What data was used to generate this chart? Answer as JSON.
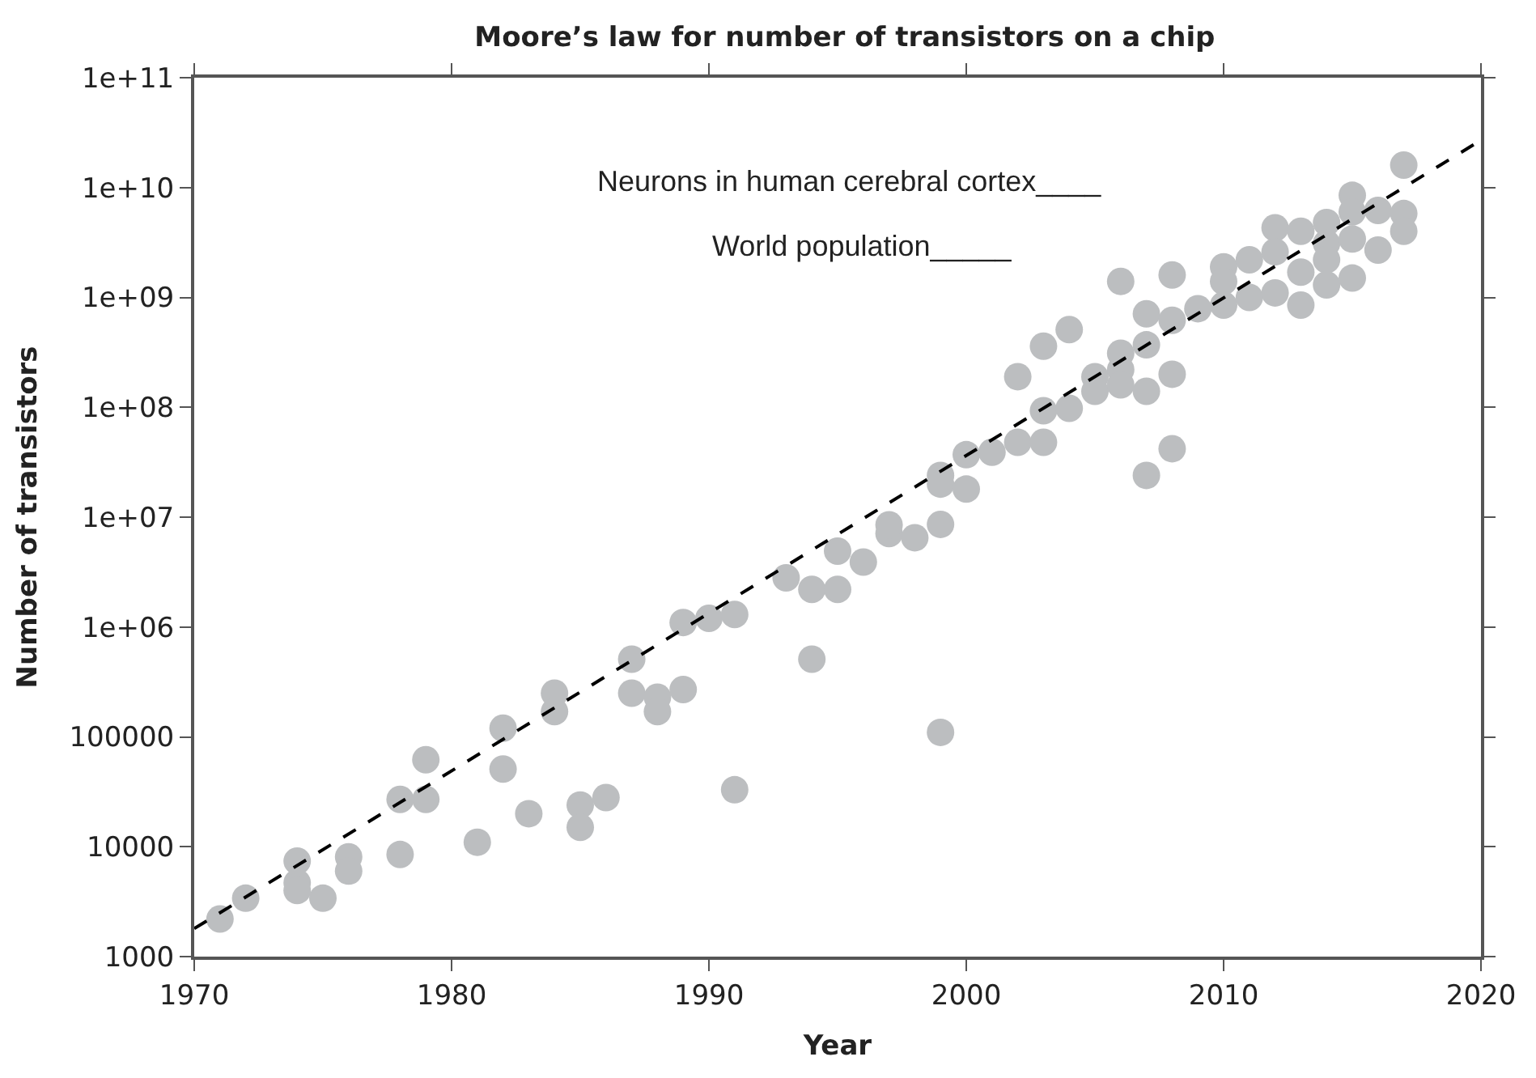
{
  "chart_data": {
    "type": "scatter",
    "title": "Moore’s law for number of transistors on a chip",
    "xlabel": "Year",
    "ylabel": "Number of transistors",
    "log": "y",
    "marker": "circle",
    "xlim": [
      1970,
      2020
    ],
    "xticks": [
      1970,
      1980,
      1990,
      2000,
      2010,
      2020
    ],
    "ylim": [
      1000,
      100000000000
    ],
    "yticks": [
      1000,
      10000,
      100000,
      {
        "value": 1000000,
        "label": "1e+06"
      },
      {
        "value": 10000000,
        "label": "1e+07"
      },
      {
        "value": 100000000,
        "label": "1e+08"
      },
      {
        "value": 1000000000,
        "label": "1e+09"
      },
      {
        "value": 10000000000,
        "label": "1e+10"
      },
      {
        "value": 100000000000,
        "label": "1e+11"
      }
    ],
    "annotations": [
      "Neurons in human cerebral cortex____",
      "World population_____"
    ],
    "series": [
      {
        "color": "#bcbec0",
        "x": [
          1971,
          1972,
          1974,
          1974,
          1974,
          1975,
          1976,
          1976,
          1978,
          1978,
          1979,
          1979,
          1981,
          1982,
          1982,
          1983,
          1984,
          1984,
          1985,
          1985,
          1986,
          1987,
          1987,
          1988,
          1988,
          1989,
          1989,
          1990,
          1991,
          1991,
          1993,
          1994,
          1994,
          1995,
          1995,
          1996,
          1997,
          1997,
          1998,
          1999,
          1999,
          1999,
          1999,
          2000,
          2000,
          2001,
          2002,
          2002,
          2003,
          2003,
          2003,
          2004,
          2004,
          2005,
          2005,
          2006,
          2006,
          2006,
          2006,
          2007,
          2007,
          2007,
          2007,
          2008,
          2008,
          2008,
          2008,
          2009,
          2010,
          2010,
          2010,
          2011,
          2011,
          2012,
          2012,
          2012,
          2013,
          2013,
          2013,
          2014,
          2014,
          2014,
          2014,
          2015,
          2015,
          2015,
          2015,
          2016,
          2016,
          2017,
          2017,
          2017
        ],
        "values": [
          2200,
          3400,
          7400,
          4700,
          4000,
          3400,
          8100,
          6000,
          8500,
          27000,
          62000,
          27000,
          11000,
          120000,
          51000,
          20000,
          250000,
          170000,
          24000,
          15000,
          28000,
          510000,
          250000,
          230000,
          170000,
          270000,
          1100000,
          1200000,
          1300000,
          33000,
          2800000,
          2200000,
          510000,
          2200000,
          4900000,
          3900000,
          7100000,
          8500000,
          6500000,
          8600000,
          24000000,
          20000000,
          110000,
          37000000,
          18000000,
          39000000,
          48000000,
          190000000,
          48000000,
          93000000,
          360000000,
          510000000,
          98000000,
          190000000,
          140000000,
          220000000,
          310000000,
          160000000,
          1400000000,
          710000000,
          370000000,
          140000000,
          24000000,
          1600000000,
          620000000,
          200000000,
          42000000,
          790000000,
          1900000000,
          1400000000,
          850000000,
          2200000000,
          1000000000,
          4300000000,
          2600000000,
          1100000000,
          4000000000,
          1700000000,
          850000000,
          4800000000,
          3100000000,
          2200000000,
          1300000000,
          8500000000,
          6000000000,
          3400000000,
          1500000000,
          6200000000,
          2700000000,
          16000000000,
          5800000000,
          4000000000
        ]
      },
      {
        "type": "line",
        "color": "#000000",
        "line_style": "dashed",
        "marker": "none",
        "x": [
          1970,
          2020
        ],
        "values": [
          1800,
          27000000000
        ]
      }
    ]
  }
}
